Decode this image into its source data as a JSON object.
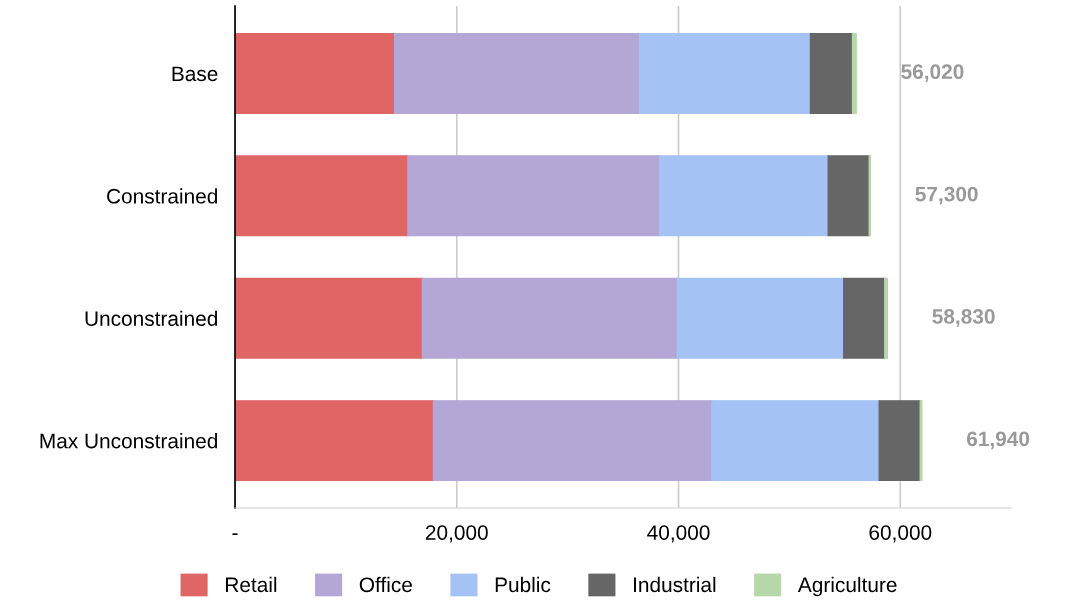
{
  "chart_data": {
    "type": "bar",
    "orientation": "horizontal",
    "stacked": true,
    "categories": [
      "Base",
      "Constrained",
      "Unconstrained",
      "Max Unconstrained"
    ],
    "series": [
      {
        "name": "Retail",
        "color": "#e06666",
        "values": [
          14400,
          15600,
          16900,
          17900
        ]
      },
      {
        "name": "Office",
        "color": "#b4a7d6",
        "values": [
          22100,
          22700,
          23000,
          25100
        ]
      },
      {
        "name": "Public",
        "color": "#a4c2f4",
        "values": [
          15400,
          15200,
          15000,
          15100
        ]
      },
      {
        "name": "Industrial",
        "color": "#666666",
        "values": [
          3800,
          3700,
          3700,
          3700
        ]
      },
      {
        "name": "Agriculture",
        "color": "#b6d7a8",
        "values": [
          320,
          100,
          230,
          140
        ]
      }
    ],
    "totals": [
      "56,020",
      "57,300",
      "58,830",
      "61,940"
    ],
    "xlim": [
      0,
      70000
    ],
    "xticks": [
      {
        "value": 0,
        "label": "-"
      },
      {
        "value": 20000,
        "label": "20,000"
      },
      {
        "value": 40000,
        "label": "40,000"
      },
      {
        "value": 60000,
        "label": "60,000"
      }
    ],
    "grid": "x",
    "legend": "bottom"
  }
}
